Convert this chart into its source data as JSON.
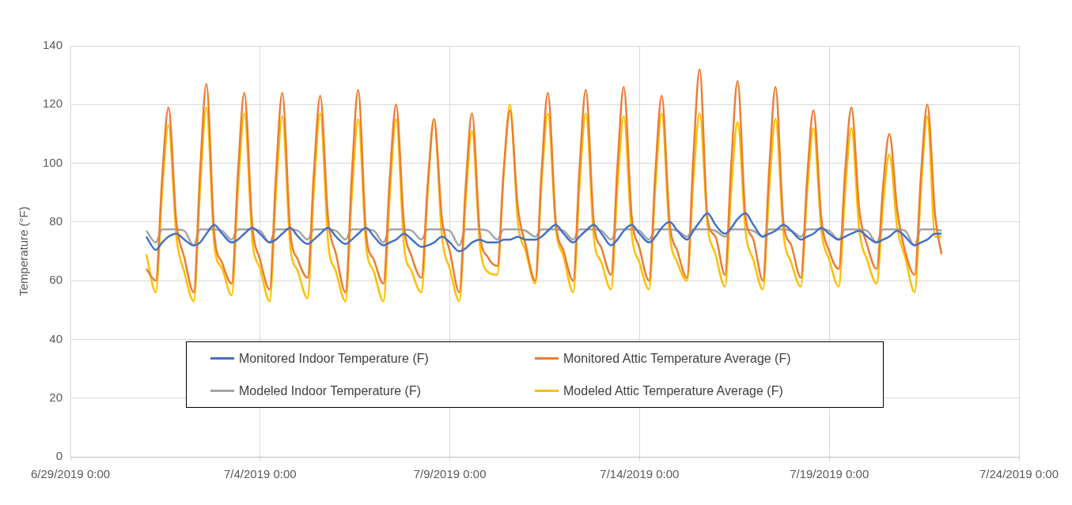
{
  "chart_data": {
    "type": "line",
    "ylabel": "Temperature (°F)",
    "legend": "bottom",
    "grid": true,
    "xlim": [
      "2019-06-29T00:00",
      "2019-07-24T00:00"
    ],
    "xticks": [
      {
        "value": "2019-06-29T00:00",
        "label": "6/29/2019 0:00"
      },
      {
        "value": "2019-07-04T00:00",
        "label": "7/4/2019 0:00"
      },
      {
        "value": "2019-07-09T00:00",
        "label": "7/9/2019 0:00"
      },
      {
        "value": "2019-07-14T00:00",
        "label": "7/14/2019 0:00"
      },
      {
        "value": "2019-07-19T00:00",
        "label": "7/19/2019 0:00"
      },
      {
        "value": "2019-07-24T00:00",
        "label": "7/24/2019 0:00"
      }
    ],
    "ylim": [
      0,
      140
    ],
    "yticks": [
      0,
      20,
      40,
      60,
      80,
      100,
      120,
      140
    ],
    "x": [
      "2019-07-01T00:00",
      "2019-07-01T06:00",
      "2019-07-01T10:00",
      "2019-07-01T14:00",
      "2019-07-01T19:00",
      "2019-07-02T00:00",
      "2019-07-02T06:00",
      "2019-07-02T10:00",
      "2019-07-02T14:00",
      "2019-07-02T19:00",
      "2019-07-03T00:00",
      "2019-07-03T06:00",
      "2019-07-03T10:00",
      "2019-07-03T14:00",
      "2019-07-03T19:00",
      "2019-07-04T00:00",
      "2019-07-04T06:00",
      "2019-07-04T10:00",
      "2019-07-04T14:00",
      "2019-07-04T19:00",
      "2019-07-05T00:00",
      "2019-07-05T06:00",
      "2019-07-05T10:00",
      "2019-07-05T14:00",
      "2019-07-05T19:00",
      "2019-07-06T00:00",
      "2019-07-06T06:00",
      "2019-07-06T10:00",
      "2019-07-06T14:00",
      "2019-07-06T19:00",
      "2019-07-07T00:00",
      "2019-07-07T06:00",
      "2019-07-07T10:00",
      "2019-07-07T14:00",
      "2019-07-07T19:00",
      "2019-07-08T00:00",
      "2019-07-08T06:00",
      "2019-07-08T10:00",
      "2019-07-08T14:00",
      "2019-07-08T19:00",
      "2019-07-09T00:00",
      "2019-07-09T06:00",
      "2019-07-09T10:00",
      "2019-07-09T14:00",
      "2019-07-09T19:00",
      "2019-07-10T00:00",
      "2019-07-10T06:00",
      "2019-07-10T10:00",
      "2019-07-10T14:00",
      "2019-07-10T19:00",
      "2019-07-11T00:00",
      "2019-07-11T06:00",
      "2019-07-11T10:00",
      "2019-07-11T14:00",
      "2019-07-11T19:00",
      "2019-07-12T00:00",
      "2019-07-12T06:00",
      "2019-07-12T10:00",
      "2019-07-12T14:00",
      "2019-07-12T19:00",
      "2019-07-13T00:00",
      "2019-07-13T06:00",
      "2019-07-13T10:00",
      "2019-07-13T14:00",
      "2019-07-13T19:00",
      "2019-07-14T00:00",
      "2019-07-14T06:00",
      "2019-07-14T10:00",
      "2019-07-14T14:00",
      "2019-07-14T19:00",
      "2019-07-15T00:00",
      "2019-07-15T06:00",
      "2019-07-15T10:00",
      "2019-07-15T14:00",
      "2019-07-15T19:00",
      "2019-07-16T00:00",
      "2019-07-16T06:00",
      "2019-07-16T10:00",
      "2019-07-16T14:00",
      "2019-07-16T19:00",
      "2019-07-17T00:00",
      "2019-07-17T06:00",
      "2019-07-17T10:00",
      "2019-07-17T14:00",
      "2019-07-17T19:00",
      "2019-07-18T00:00",
      "2019-07-18T06:00",
      "2019-07-18T10:00",
      "2019-07-18T14:00",
      "2019-07-18T19:00",
      "2019-07-19T00:00",
      "2019-07-19T06:00",
      "2019-07-19T10:00",
      "2019-07-19T14:00",
      "2019-07-19T19:00",
      "2019-07-20T00:00",
      "2019-07-20T06:00",
      "2019-07-20T10:00",
      "2019-07-20T14:00",
      "2019-07-20T19:00",
      "2019-07-21T00:00",
      "2019-07-21T06:00",
      "2019-07-21T10:00",
      "2019-07-21T14:00",
      "2019-07-21T19:00",
      "2019-07-21T23:00"
    ],
    "series": [
      {
        "name": "Monitored Indoor Temperature (F)",
        "color": "#4472c4",
        "values": [
          75,
          70.5,
          73,
          75,
          76,
          74,
          72,
          73,
          76,
          79,
          76,
          73,
          74,
          76,
          78,
          76,
          73,
          74,
          76,
          78,
          75,
          72.5,
          74,
          76,
          78,
          75,
          72.5,
          74,
          76,
          78,
          75,
          72,
          73,
          74,
          76,
          74,
          71.5,
          72,
          73,
          75,
          73,
          70,
          71,
          73,
          74,
          73,
          73,
          74,
          74,
          75,
          74,
          74,
          75,
          77,
          79,
          76,
          73,
          75,
          77,
          79,
          76,
          72,
          74,
          77,
          79,
          76,
          73,
          75,
          78,
          80,
          77,
          74,
          77,
          80,
          83,
          79,
          76,
          78,
          81,
          83,
          79,
          75,
          76,
          77,
          79,
          77,
          74,
          75,
          76,
          78,
          76,
          74,
          75,
          76,
          77,
          75,
          73,
          74,
          75,
          77,
          75,
          72,
          73,
          74,
          76,
          76
        ]
      },
      {
        "name": "Monitored Attic Temperature Average (F)",
        "color": "#ed7d31",
        "values": [
          64,
          60,
          95,
          119,
          80,
          68,
          56,
          97,
          127,
          76,
          66,
          59,
          97,
          124,
          79,
          67,
          57,
          96,
          124,
          77,
          67,
          61,
          97,
          123,
          81,
          69,
          56,
          96,
          125,
          76,
          67,
          59,
          95,
          120,
          79,
          68,
          61,
          93,
          115,
          81,
          70,
          56,
          92,
          117,
          76,
          68,
          65,
          97,
          118,
          85,
          72,
          60,
          97,
          124,
          80,
          70,
          60,
          98,
          125,
          80,
          71,
          62,
          99,
          126,
          82,
          71,
          60,
          97,
          123,
          80,
          70,
          61,
          102,
          132,
          81,
          75,
          62,
          100,
          128,
          82,
          74,
          60,
          98,
          126,
          80,
          72,
          61,
          95,
          118,
          81,
          70,
          64,
          97,
          119,
          84,
          72,
          64,
          92,
          110,
          84,
          70,
          62,
          96,
          120,
          82,
          69
        ]
      },
      {
        "name": "Modeled Indoor Temperature (F)",
        "color": "#a5a5a5",
        "values": [
          77,
          73,
          77.5,
          77.5,
          77.5,
          77,
          72,
          77.5,
          77.5,
          77.5,
          77,
          74,
          77.5,
          77.5,
          77.5,
          77,
          73,
          77.5,
          77.5,
          77.5,
          77,
          74,
          77.5,
          77.5,
          77.5,
          77,
          74,
          77.5,
          77.5,
          77.5,
          77,
          73,
          77.5,
          77.5,
          77.5,
          77,
          74,
          77.5,
          77.5,
          77.5,
          77,
          72,
          77.5,
          77.5,
          77.5,
          77,
          74,
          77.5,
          77.5,
          77.5,
          77,
          75,
          77.5,
          77.5,
          77.5,
          77,
          74,
          77.5,
          77.5,
          77.5,
          77,
          74,
          77.5,
          77.5,
          77.5,
          77,
          74,
          77.5,
          77.5,
          77.5,
          77,
          75,
          77.5,
          77.5,
          77.5,
          77,
          75,
          77.5,
          77.5,
          77.5,
          77,
          75,
          77.5,
          77.5,
          77.5,
          77,
          75,
          77.5,
          77.5,
          77.5,
          77,
          74,
          77.5,
          77.5,
          77.5,
          77,
          73,
          77.5,
          77.5,
          77.5,
          77,
          72,
          77.5,
          77.5,
          77.5,
          77
        ]
      },
      {
        "name": "Modeled Attic Temperature Average (F)",
        "color": "#ffc000",
        "values": [
          69,
          56,
          90,
          113,
          75,
          63,
          53,
          91,
          119,
          72,
          64,
          55,
          91,
          117,
          74,
          64,
          53,
          90,
          116,
          72,
          63,
          54,
          91,
          117,
          73,
          63,
          53,
          89,
          115,
          72,
          63,
          53,
          89,
          115,
          72,
          63,
          56,
          90,
          115,
          75,
          64,
          53,
          87,
          111,
          72,
          63,
          62,
          96,
          120,
          80,
          70,
          59,
          93,
          117,
          78,
          68,
          56,
          92,
          117,
          75,
          66,
          57,
          92,
          116,
          76,
          66,
          57,
          92,
          117,
          76,
          66,
          60,
          94,
          117,
          79,
          69,
          58,
          91,
          114,
          77,
          67,
          57,
          91,
          115,
          76,
          66,
          58,
          90,
          112,
          77,
          67,
          58,
          90,
          112,
          77,
          67,
          59,
          86,
          103,
          78,
          68,
          56,
          91,
          116,
          75,
          75
        ]
      }
    ]
  }
}
